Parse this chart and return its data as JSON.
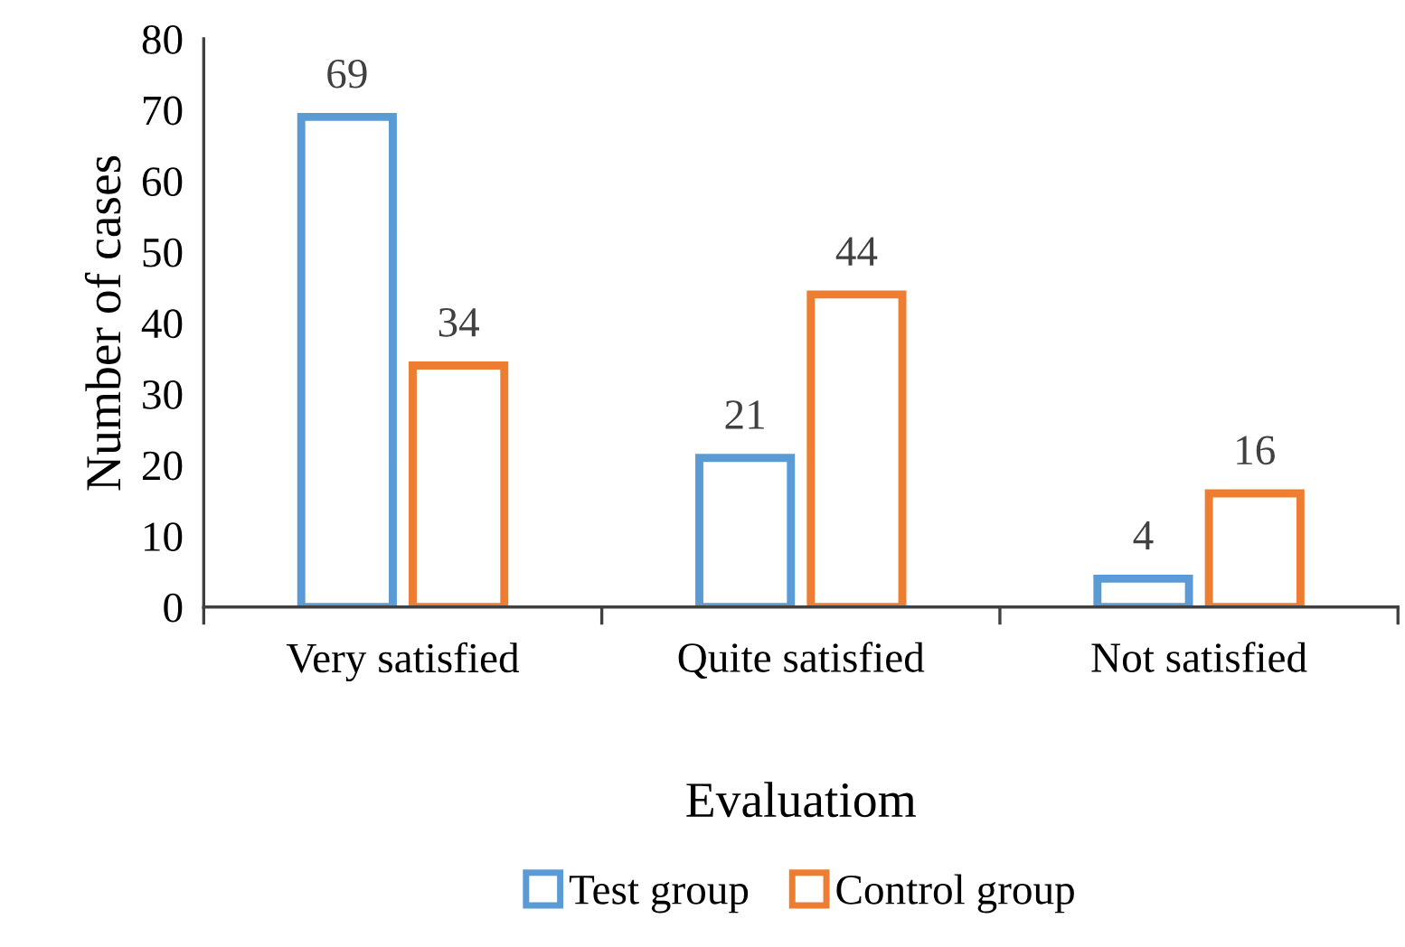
{
  "chart_data": {
    "type": "bar",
    "xlabel": "Evaluatiom",
    "ylabel": "Number of cases",
    "categories": [
      "Very satisfied",
      "Quite satisfied",
      "Not satisfied"
    ],
    "series": [
      {
        "name": "Test group",
        "color": "#5b9bd5",
        "values": [
          69,
          21,
          4
        ]
      },
      {
        "name": "Control group",
        "color": "#ed7d31",
        "values": [
          34,
          44,
          16
        ]
      }
    ],
    "ylim": [
      0,
      80
    ],
    "yticks": [
      0,
      10,
      20,
      30,
      40,
      50,
      60,
      70,
      80
    ],
    "grid": false,
    "legend": "bottom",
    "data_labels": true
  }
}
